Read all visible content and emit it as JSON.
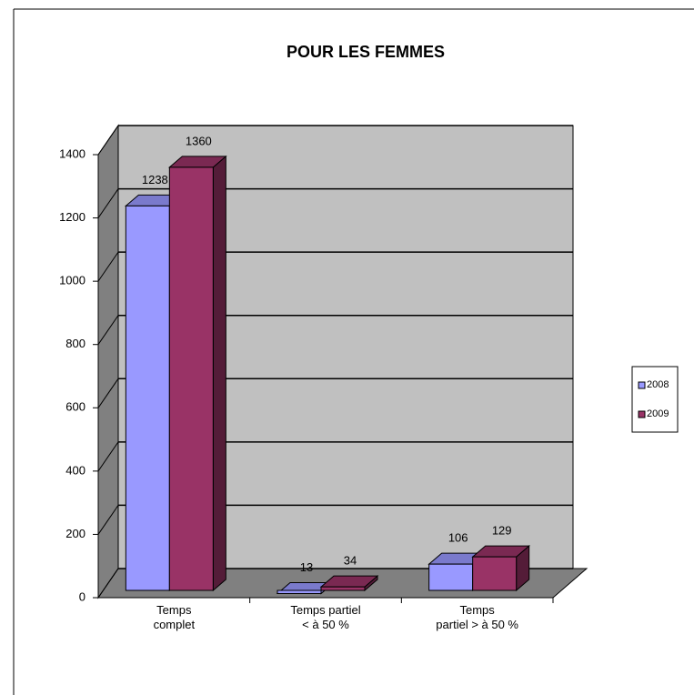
{
  "chart_data": {
    "type": "bar3d",
    "title": "POUR LES FEMMES",
    "categories": [
      "Temps\ncomplet",
      "Temps partiel\n< à 50 %",
      "Temps\npartiel > à 50 %"
    ],
    "series": [
      {
        "name": "2008",
        "color": "#9999ff",
        "values": [
          1238,
          13,
          106
        ]
      },
      {
        "name": "2009",
        "color": "#993366",
        "values": [
          1360,
          34,
          129
        ]
      }
    ],
    "ylim": [
      0,
      1400
    ],
    "yticks": [
      0,
      200,
      400,
      600,
      800,
      1000,
      1200,
      1400
    ],
    "grid": true,
    "legend": "right"
  }
}
